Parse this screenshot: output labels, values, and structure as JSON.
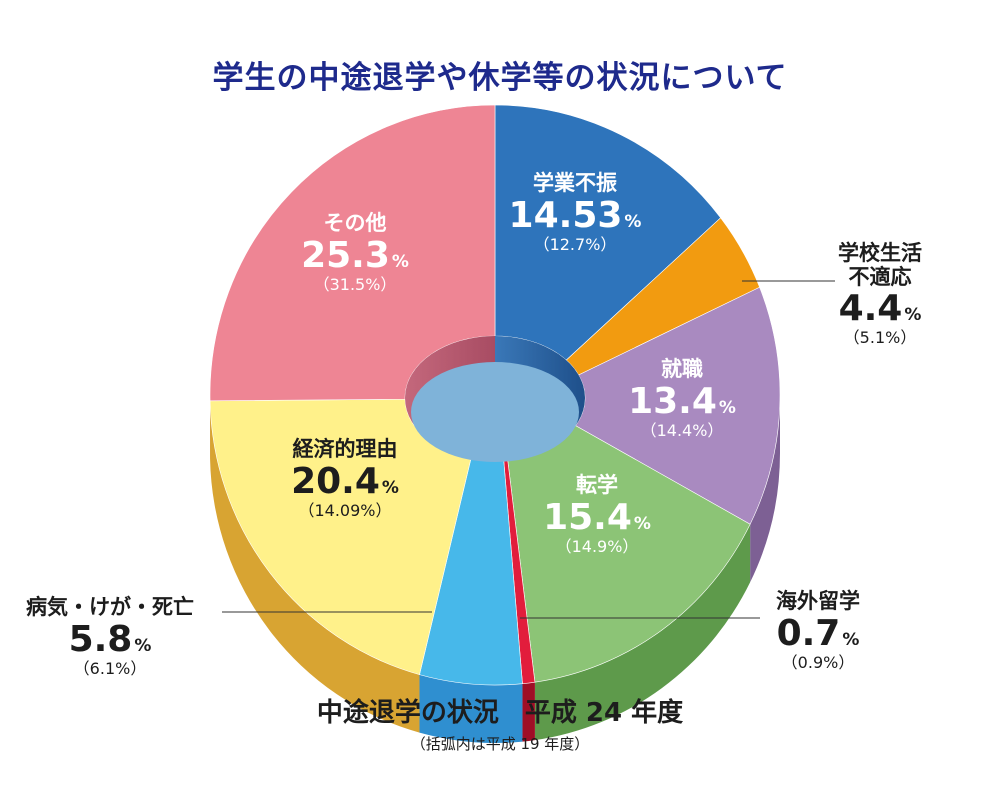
{
  "title": "学生の中途退学や休学等の状況について",
  "subtitle": "中途退学の状況　平成 24 年度",
  "note": "（括弧内は平成 19 年度）",
  "percent_sign": "%",
  "chart_data": {
    "type": "pie",
    "style": "3D donut",
    "title": "学生の中途退学や休学等の状況について",
    "subtitle": "中途退学の状況　平成 24 年度",
    "start": "12 o'clock, clockwise",
    "slices": [
      {
        "label": "学業不振",
        "value": 14.53,
        "value_text": "14.53",
        "previous": "（12.7%）",
        "color": "#2e74bb",
        "side": "#1f5896"
      },
      {
        "label": "学校生活不適応",
        "label_lines": [
          "学校生活",
          "不適応"
        ],
        "value": 4.4,
        "value_text": "4.4",
        "previous": "（5.1%）",
        "color": "#f29b10",
        "side": "#c27a08"
      },
      {
        "label": "就職",
        "value": 13.4,
        "value_text": "13.4",
        "previous": "（14.4%）",
        "color": "#a98ac0",
        "side": "#7d6094"
      },
      {
        "label": "転学",
        "value": 15.4,
        "value_text": "15.4",
        "previous": "（14.9%）",
        "color": "#8cc476",
        "side": "#5e9a4b"
      },
      {
        "label": "海外留学",
        "value": 0.7,
        "value_text": "0.7",
        "previous": "（0.9%）",
        "color": "#e21d3c",
        "side": "#9e0f26"
      },
      {
        "label": "病気・けが・死亡",
        "value": 5.8,
        "value_text": "5.8",
        "previous": "（6.1%）",
        "color": "#47b8ea",
        "side": "#2f8fd0"
      },
      {
        "label": "経済的理由",
        "value": 20.4,
        "value_text": "20.4",
        "previous": "（14.09%）",
        "color": "#fff18a",
        "side": "#d8a432"
      },
      {
        "label": "その他",
        "value": 25.3,
        "value_text": "25.3",
        "previous": "（31.5%）",
        "color": "#ee8594",
        "side": "#c25a6c"
      }
    ]
  },
  "colors": {
    "title": "#1e2a8c",
    "hole": "#7fb3d9"
  }
}
